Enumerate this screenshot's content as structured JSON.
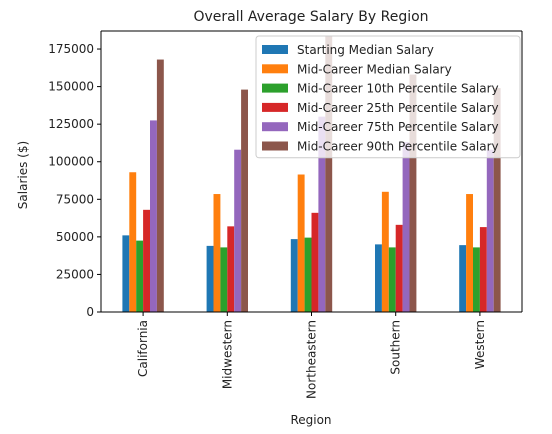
{
  "chart_data": {
    "type": "bar",
    "title": "Overall Average Salary By Region",
    "xlabel": "Region",
    "ylabel": "Salaries ($)",
    "ylim": [
      0,
      187000
    ],
    "yticks": [
      0,
      25000,
      50000,
      75000,
      100000,
      125000,
      150000,
      175000
    ],
    "grid": false,
    "legend_position": "top-right",
    "categories": [
      "California",
      "Midwestern",
      "Northeastern",
      "Southern",
      "Western"
    ],
    "series": [
      {
        "name": "Starting Median Salary",
        "color": "#1f77b4",
        "values": [
          51000,
          44000,
          48500,
          45000,
          44500
        ]
      },
      {
        "name": "Mid-Career Median Salary",
        "color": "#ff7f0e",
        "values": [
          93000,
          78500,
          91500,
          80000,
          78500
        ]
      },
      {
        "name": "Mid-Career 10th Percentile Salary",
        "color": "#2ca02c",
        "values": [
          47500,
          43000,
          49500,
          43000,
          43000
        ]
      },
      {
        "name": "Mid-Career 25th Percentile Salary",
        "color": "#d62728",
        "values": [
          68000,
          57000,
          66000,
          58000,
          56500
        ]
      },
      {
        "name": "Mid-Career 75th Percentile Salary",
        "color": "#9467bd",
        "values": [
          127500,
          108000,
          130000,
          113000,
          108000
        ]
      },
      {
        "name": "Mid-Career 90th Percentile Salary",
        "color": "#8c564b",
        "values": [
          168000,
          148000,
          184000,
          158000,
          149000
        ]
      }
    ]
  }
}
